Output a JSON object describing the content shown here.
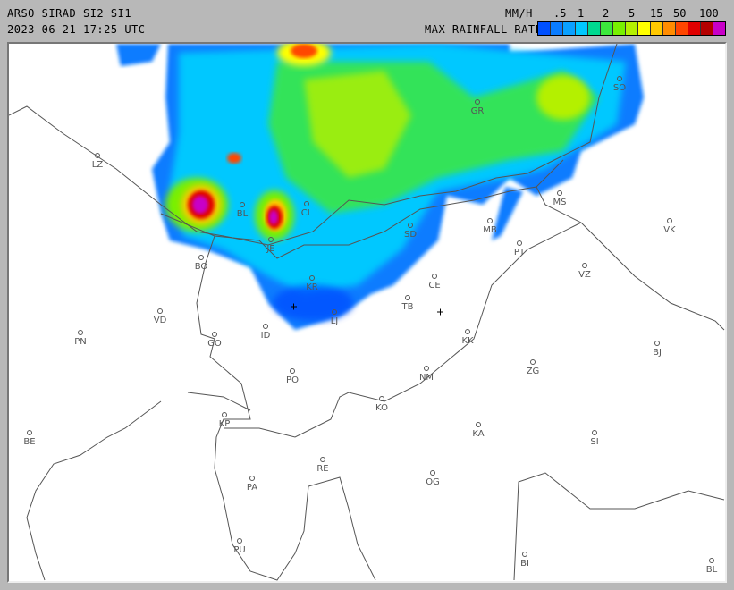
{
  "header": {
    "title": "ARSO SIRAD SI2 SI1",
    "timestamp": "2023-06-21 17:25 UTC",
    "product": "MAX RAINFALL RATE",
    "unit": "MM/H"
  },
  "legend": {
    "labels": [
      ".5",
      "1",
      "2",
      "5",
      "15",
      "50",
      "100"
    ],
    "colors": [
      "#0050ff",
      "#0a7cff",
      "#0aa0ff",
      "#00c8ff",
      "#00d890",
      "#3ce83c",
      "#78f000",
      "#b4f000",
      "#ffff00",
      "#ffc800",
      "#ff8c00",
      "#ff4600",
      "#e00000",
      "#b40000",
      "#c800c8"
    ]
  },
  "cities": [
    "LZ",
    "BL",
    "JE",
    "CL",
    "KR",
    "SD",
    "CE",
    "TB",
    "LJ",
    "MB",
    "MS",
    "PT",
    "VK",
    "VZ",
    "GR",
    "SO",
    "BO",
    "VD",
    "GO",
    "PN",
    "ID",
    "PO",
    "KP",
    "BE",
    "PA",
    "RE",
    "PU",
    "KK",
    "ZG",
    "NM",
    "KO",
    "KA",
    "SI",
    "BJ",
    "OG",
    "BI",
    "BL"
  ]
}
